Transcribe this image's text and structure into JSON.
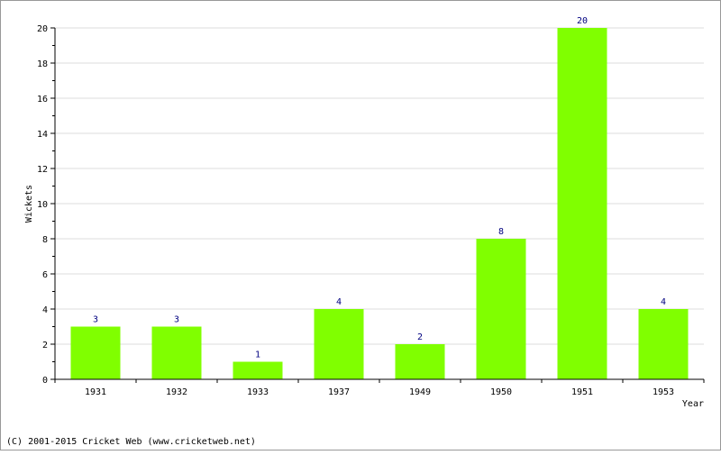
{
  "chart_data": {
    "type": "bar",
    "categories": [
      "1931",
      "1932",
      "1933",
      "1937",
      "1949",
      "1950",
      "1951",
      "1953"
    ],
    "values": [
      3,
      3,
      1,
      4,
      2,
      8,
      20,
      4
    ],
    "data_labels": [
      "3",
      "3",
      "1",
      "4",
      "2",
      "8",
      "20",
      "4"
    ],
    "title": "",
    "xlabel": "Year",
    "ylabel": "Wickets",
    "ylim": [
      0,
      20
    ],
    "yticks": [
      0,
      2,
      4,
      6,
      8,
      10,
      12,
      14,
      16,
      18,
      20
    ],
    "grid": true,
    "bar_color": "#80ff00",
    "grid_color": "#dddddd",
    "label_color": "#000080"
  },
  "footer": {
    "text": "(C) 2001-2015 Cricket Web (www.cricketweb.net)"
  }
}
